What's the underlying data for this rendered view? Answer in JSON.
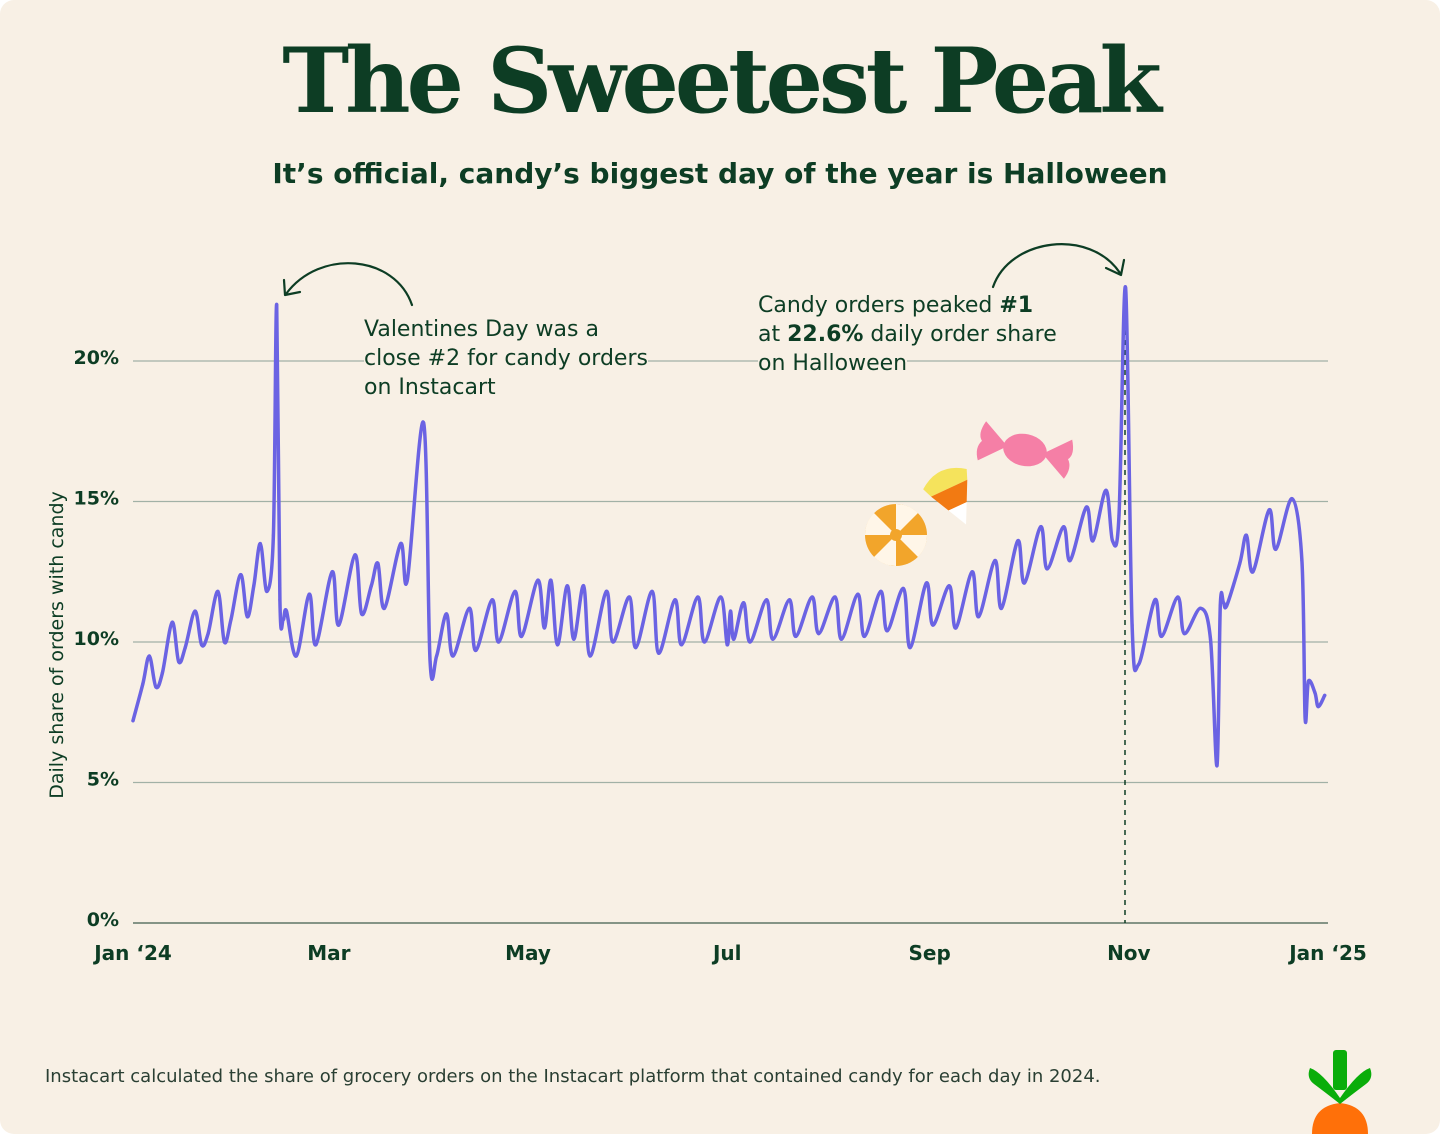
{
  "title": "The Sweetest Peak",
  "subtitle": "It’s official, candy’s biggest day of the year is Halloween",
  "annotations": {
    "valentines": {
      "line1": "Valentines Day was a",
      "line2": "close #2 for candy orders",
      "line3": "on Instacart"
    },
    "halloween": {
      "line1_pre": "Candy orders peaked ",
      "line1_bold": "#1",
      "line2_pre": "at ",
      "line2_bold": "22.6%",
      "line2_post": " daily order share",
      "line3": "on Halloween"
    }
  },
  "footnote": "Instacart calculated the share of grocery orders on the Instacart platform that contained candy for each day in 2024.",
  "icons": [
    "candy-swirl-icon",
    "candy-corn-icon",
    "wrapped-candy-icon",
    "instacart-carrot-logo"
  ],
  "colors": {
    "line": "#6b63e3",
    "text": "#0d3d24",
    "background": "#f8f0e5",
    "grid": "#a2b1a6"
  },
  "chart_data": {
    "type": "line",
    "title": "The Sweetest Peak",
    "subtitle": "It’s official, candy’s biggest day of the year is Halloween",
    "xlabel": "",
    "ylabel": "Daily share of orders with candy",
    "x_ticks": [
      "Jan ‘24",
      "Mar",
      "May",
      "Jul",
      "Sep",
      "Nov",
      "Jan ‘25"
    ],
    "x_tick_dates": [
      "2024-01-01",
      "2024-03-01",
      "2024-05-01",
      "2024-07-01",
      "2024-09-01",
      "2024-11-01",
      "2025-01-01"
    ],
    "y_ticks": [
      0,
      5,
      10,
      15,
      20
    ],
    "y_tick_labels": [
      "0%",
      "5%",
      "10%",
      "15%",
      "20%"
    ],
    "ylim": [
      0,
      23
    ],
    "grid": true,
    "series": [
      {
        "points": [
          [
            "2024-01-01",
            7.2
          ],
          [
            "2024-01-04",
            8.5
          ],
          [
            "2024-01-06",
            9.5
          ],
          [
            "2024-01-08",
            8.4
          ],
          [
            "2024-01-10",
            8.9
          ],
          [
            "2024-01-13",
            10.7
          ],
          [
            "2024-01-15",
            9.3
          ],
          [
            "2024-01-17",
            9.8
          ],
          [
            "2024-01-20",
            11.1
          ],
          [
            "2024-01-22",
            9.9
          ],
          [
            "2024-01-24",
            10.3
          ],
          [
            "2024-01-27",
            11.8
          ],
          [
            "2024-01-29",
            10.0
          ],
          [
            "2024-01-31",
            10.8
          ],
          [
            "2024-02-03",
            12.4
          ],
          [
            "2024-02-05",
            10.9
          ],
          [
            "2024-02-07",
            12.0
          ],
          [
            "2024-02-09",
            13.5
          ],
          [
            "2024-02-11",
            11.8
          ],
          [
            "2024-02-13",
            13.8
          ],
          [
            "2024-02-14",
            22.0
          ],
          [
            "2024-02-15",
            11.5
          ],
          [
            "2024-02-16",
            10.8
          ],
          [
            "2024-02-17",
            11.1
          ],
          [
            "2024-02-20",
            9.5
          ],
          [
            "2024-02-24",
            11.7
          ],
          [
            "2024-02-26",
            9.9
          ],
          [
            "2024-03-02",
            12.5
          ],
          [
            "2024-03-04",
            10.6
          ],
          [
            "2024-03-09",
            13.1
          ],
          [
            "2024-03-11",
            11.0
          ],
          [
            "2024-03-14",
            12.0
          ],
          [
            "2024-03-16",
            12.8
          ],
          [
            "2024-03-18",
            11.2
          ],
          [
            "2024-03-23",
            13.5
          ],
          [
            "2024-03-25",
            12.2
          ],
          [
            "2024-03-30",
            17.8
          ],
          [
            "2024-04-01",
            9.3
          ],
          [
            "2024-04-03",
            9.5
          ],
          [
            "2024-04-06",
            11.0
          ],
          [
            "2024-04-08",
            9.5
          ],
          [
            "2024-04-13",
            11.2
          ],
          [
            "2024-04-15",
            9.7
          ],
          [
            "2024-04-20",
            11.5
          ],
          [
            "2024-04-22",
            10.0
          ],
          [
            "2024-04-27",
            11.8
          ],
          [
            "2024-04-29",
            10.2
          ],
          [
            "2024-05-04",
            12.2
          ],
          [
            "2024-05-06",
            10.5
          ],
          [
            "2024-05-08",
            12.2
          ],
          [
            "2024-05-10",
            9.9
          ],
          [
            "2024-05-13",
            12.0
          ],
          [
            "2024-05-15",
            10.1
          ],
          [
            "2024-05-18",
            12.0
          ],
          [
            "2024-05-20",
            9.5
          ],
          [
            "2024-05-25",
            11.8
          ],
          [
            "2024-05-27",
            10.0
          ],
          [
            "2024-06-01",
            11.6
          ],
          [
            "2024-06-03",
            9.8
          ],
          [
            "2024-06-08",
            11.8
          ],
          [
            "2024-06-10",
            9.6
          ],
          [
            "2024-06-15",
            11.5
          ],
          [
            "2024-06-17",
            9.9
          ],
          [
            "2024-06-22",
            11.6
          ],
          [
            "2024-06-24",
            10.0
          ],
          [
            "2024-06-29",
            11.6
          ],
          [
            "2024-07-01",
            9.9
          ],
          [
            "2024-07-02",
            11.1
          ],
          [
            "2024-07-03",
            10.1
          ],
          [
            "2024-07-06",
            11.4
          ],
          [
            "2024-07-08",
            10.0
          ],
          [
            "2024-07-13",
            11.5
          ],
          [
            "2024-07-15",
            10.1
          ],
          [
            "2024-07-20",
            11.5
          ],
          [
            "2024-07-22",
            10.2
          ],
          [
            "2024-07-27",
            11.6
          ],
          [
            "2024-07-29",
            10.3
          ],
          [
            "2024-08-03",
            11.6
          ],
          [
            "2024-08-05",
            10.1
          ],
          [
            "2024-08-10",
            11.7
          ],
          [
            "2024-08-12",
            10.2
          ],
          [
            "2024-08-17",
            11.8
          ],
          [
            "2024-08-19",
            10.4
          ],
          [
            "2024-08-24",
            11.9
          ],
          [
            "2024-08-26",
            9.8
          ],
          [
            "2024-08-31",
            12.1
          ],
          [
            "2024-09-02",
            10.6
          ],
          [
            "2024-09-07",
            12.0
          ],
          [
            "2024-09-09",
            10.5
          ],
          [
            "2024-09-14",
            12.5
          ],
          [
            "2024-09-16",
            10.9
          ],
          [
            "2024-09-21",
            12.9
          ],
          [
            "2024-09-23",
            11.2
          ],
          [
            "2024-09-28",
            13.6
          ],
          [
            "2024-09-30",
            12.1
          ],
          [
            "2024-10-05",
            14.1
          ],
          [
            "2024-10-07",
            12.6
          ],
          [
            "2024-10-12",
            14.1
          ],
          [
            "2024-10-14",
            12.9
          ],
          [
            "2024-10-19",
            14.8
          ],
          [
            "2024-10-21",
            13.6
          ],
          [
            "2024-10-25",
            15.4
          ],
          [
            "2024-10-27",
            13.6
          ],
          [
            "2024-10-29",
            14.5
          ],
          [
            "2024-10-31",
            22.6
          ],
          [
            "2024-11-02",
            10.6
          ],
          [
            "2024-11-04",
            9.2
          ],
          [
            "2024-11-09",
            11.5
          ],
          [
            "2024-11-11",
            10.2
          ],
          [
            "2024-11-16",
            11.6
          ],
          [
            "2024-11-18",
            10.3
          ],
          [
            "2024-11-23",
            11.2
          ],
          [
            "2024-11-26",
            10.1
          ],
          [
            "2024-11-28",
            5.6
          ],
          [
            "2024-11-29",
            11.3
          ],
          [
            "2024-11-30",
            11.4
          ],
          [
            "2024-12-01",
            11.3
          ],
          [
            "2024-12-05",
            12.8
          ],
          [
            "2024-12-07",
            13.8
          ],
          [
            "2024-12-09",
            12.5
          ],
          [
            "2024-12-14",
            14.7
          ],
          [
            "2024-12-16",
            13.3
          ],
          [
            "2024-12-21",
            15.1
          ],
          [
            "2024-12-24",
            12.9
          ],
          [
            "2024-12-25",
            7.3
          ],
          [
            "2024-12-26",
            8.6
          ],
          [
            "2024-12-28",
            8.2
          ],
          [
            "2024-12-29",
            7.7
          ],
          [
            "2024-12-31",
            8.1
          ]
        ]
      }
    ]
  }
}
